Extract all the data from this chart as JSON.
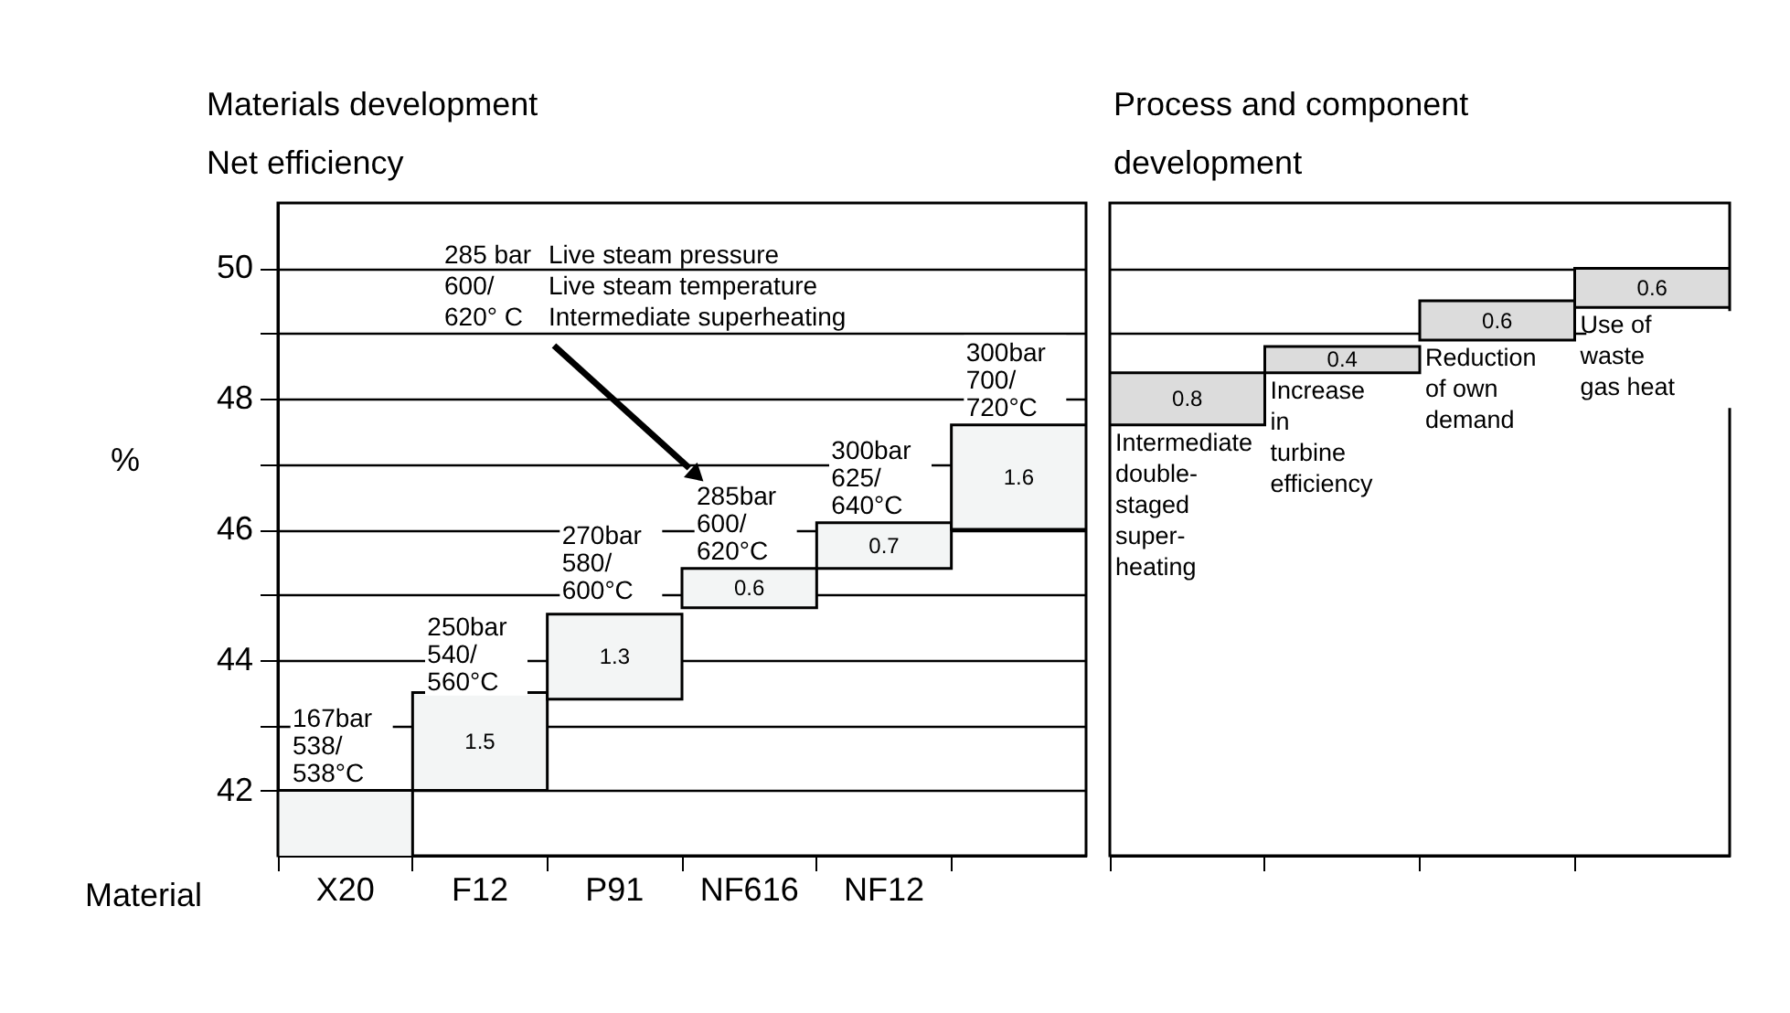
{
  "chart_data": [
    {
      "type": "bar",
      "title": "Materials development",
      "subtitle": "Net efficiency",
      "xlabel": "Material",
      "ylabel": "%",
      "categories": [
        "X20",
        "F12",
        "P91",
        "NF616",
        "NF12",
        null
      ],
      "values": [
        42,
        1.5,
        1.3,
        0.6,
        0.7,
        1.6
      ],
      "base": [
        null,
        42,
        43.4,
        44.8,
        45.4,
        46.0
      ],
      "color": "#f3f5f5",
      "value_labels": [
        null,
        "1.5",
        "1.3",
        "0.6",
        "0.7",
        "1.6"
      ],
      "ylim": [
        41,
        51
      ],
      "yticks": [
        42,
        {
          "value": 43,
          "label": null
        },
        44,
        {
          "value": 45,
          "label": null
        },
        46,
        {
          "value": 47,
          "label": null
        },
        48,
        {
          "value": 49,
          "label": null
        },
        50
      ],
      "grid": "y",
      "annotations": [
        {
          "text": "167bar\n538/\n538°C",
          "x": "X20",
          "y": 42
        },
        {
          "text": "250bar\n540/\n560°C",
          "x": "F12",
          "y": 43.4
        },
        {
          "text": "270bar\n580/\n600°C",
          "x": "P91",
          "y": 44.8
        },
        {
          "text": "285bar\n600/\n620°C",
          "x": "NF616",
          "y": 45.4
        },
        {
          "text": "300bar\n625/\n640°C",
          "x": "NF12",
          "y": 46.1
        },
        {
          "text": "300bar\n700/\n720°C",
          "y": 47.6
        },
        "285 bar\n600/\n620° C",
        "Live steam pressure\nLive steam temperature\nIntermediate superheating"
      ]
    },
    {
      "type": "bar",
      "title": "Process and component\ndevelopment",
      "categories": [
        null,
        null,
        null,
        null
      ],
      "values": [
        0.8,
        0.4,
        0.6,
        0.6
      ],
      "base": [
        47.6,
        48.4,
        48.9,
        49.4
      ],
      "color": "#dcdcdc",
      "data_labels": true,
      "ylim": [
        41,
        51
      ],
      "yticks": [
        49,
        50
      ],
      "grid": "y",
      "tick_labels": false,
      "annotations": [
        {
          "text": "Intermediate\ndouble-\nstaged\nsuper-\nheating",
          "y": 47.6
        },
        {
          "text": "Increase\nin\nturbine\nefficiency",
          "y": 48.4
        },
        {
          "text": "Reduction\nof own\ndemand",
          "y": 48.9
        },
        {
          "text": "Use of\nwaste\ngas heat",
          "y": 49.4
        }
      ]
    }
  ]
}
